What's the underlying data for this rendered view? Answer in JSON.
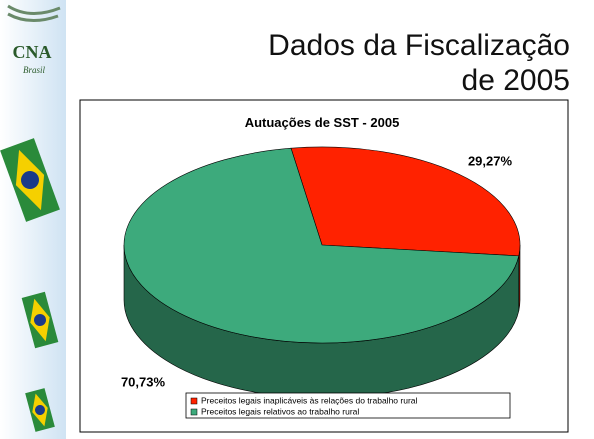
{
  "slide": {
    "logo": "CNA",
    "logo_sub": "Brasil",
    "title_lines": [
      "Dados da Fiscalização",
      "de 2005"
    ]
  },
  "chart_data": {
    "type": "pie3d",
    "title": "Autuações de SST - 2005",
    "categories": [
      "Preceitos legais inaplicáveis às relações do trabalho rural",
      "Preceitos legais relativos ao trabalho rural"
    ],
    "values": [
      29.27,
      70.73
    ],
    "value_labels": [
      "29,27%",
      "70,73%"
    ],
    "colors": [
      "#ff2200",
      "#3daa7c"
    ]
  }
}
